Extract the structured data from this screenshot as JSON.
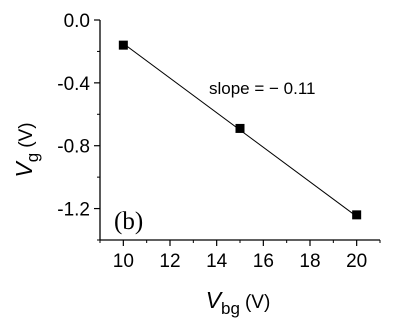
{
  "chart_data": {
    "type": "scatter",
    "xlabel": {
      "main": "V",
      "sub": "bg",
      "unit": "(V)"
    },
    "ylabel": {
      "main": "V",
      "sub": "g",
      "unit": "(V)"
    },
    "xlim": [
      9,
      21
    ],
    "ylim": [
      -1.4,
      0
    ],
    "xticks": [
      10,
      12,
      14,
      16,
      18,
      20
    ],
    "yticks": [
      0,
      -0.4,
      -0.8,
      -1.2
    ],
    "xtick_labels": [
      "10",
      "12",
      "14",
      "16",
      "18",
      "20"
    ],
    "ytick_labels": [
      "0.0",
      "-0.4",
      "-0.8",
      "-1.2"
    ],
    "points": [
      {
        "x": 10,
        "y": -0.16
      },
      {
        "x": 15,
        "y": -0.69
      },
      {
        "x": 20,
        "y": -1.24
      }
    ],
    "fit_line": {
      "x": [
        10,
        20
      ],
      "y": [
        -0.15,
        -1.25
      ]
    },
    "annotation": "slope = − 0.11",
    "panel_label": "(b)",
    "colors": {
      "marker": "#000000",
      "line": "#000000",
      "axes": "#000000"
    }
  }
}
